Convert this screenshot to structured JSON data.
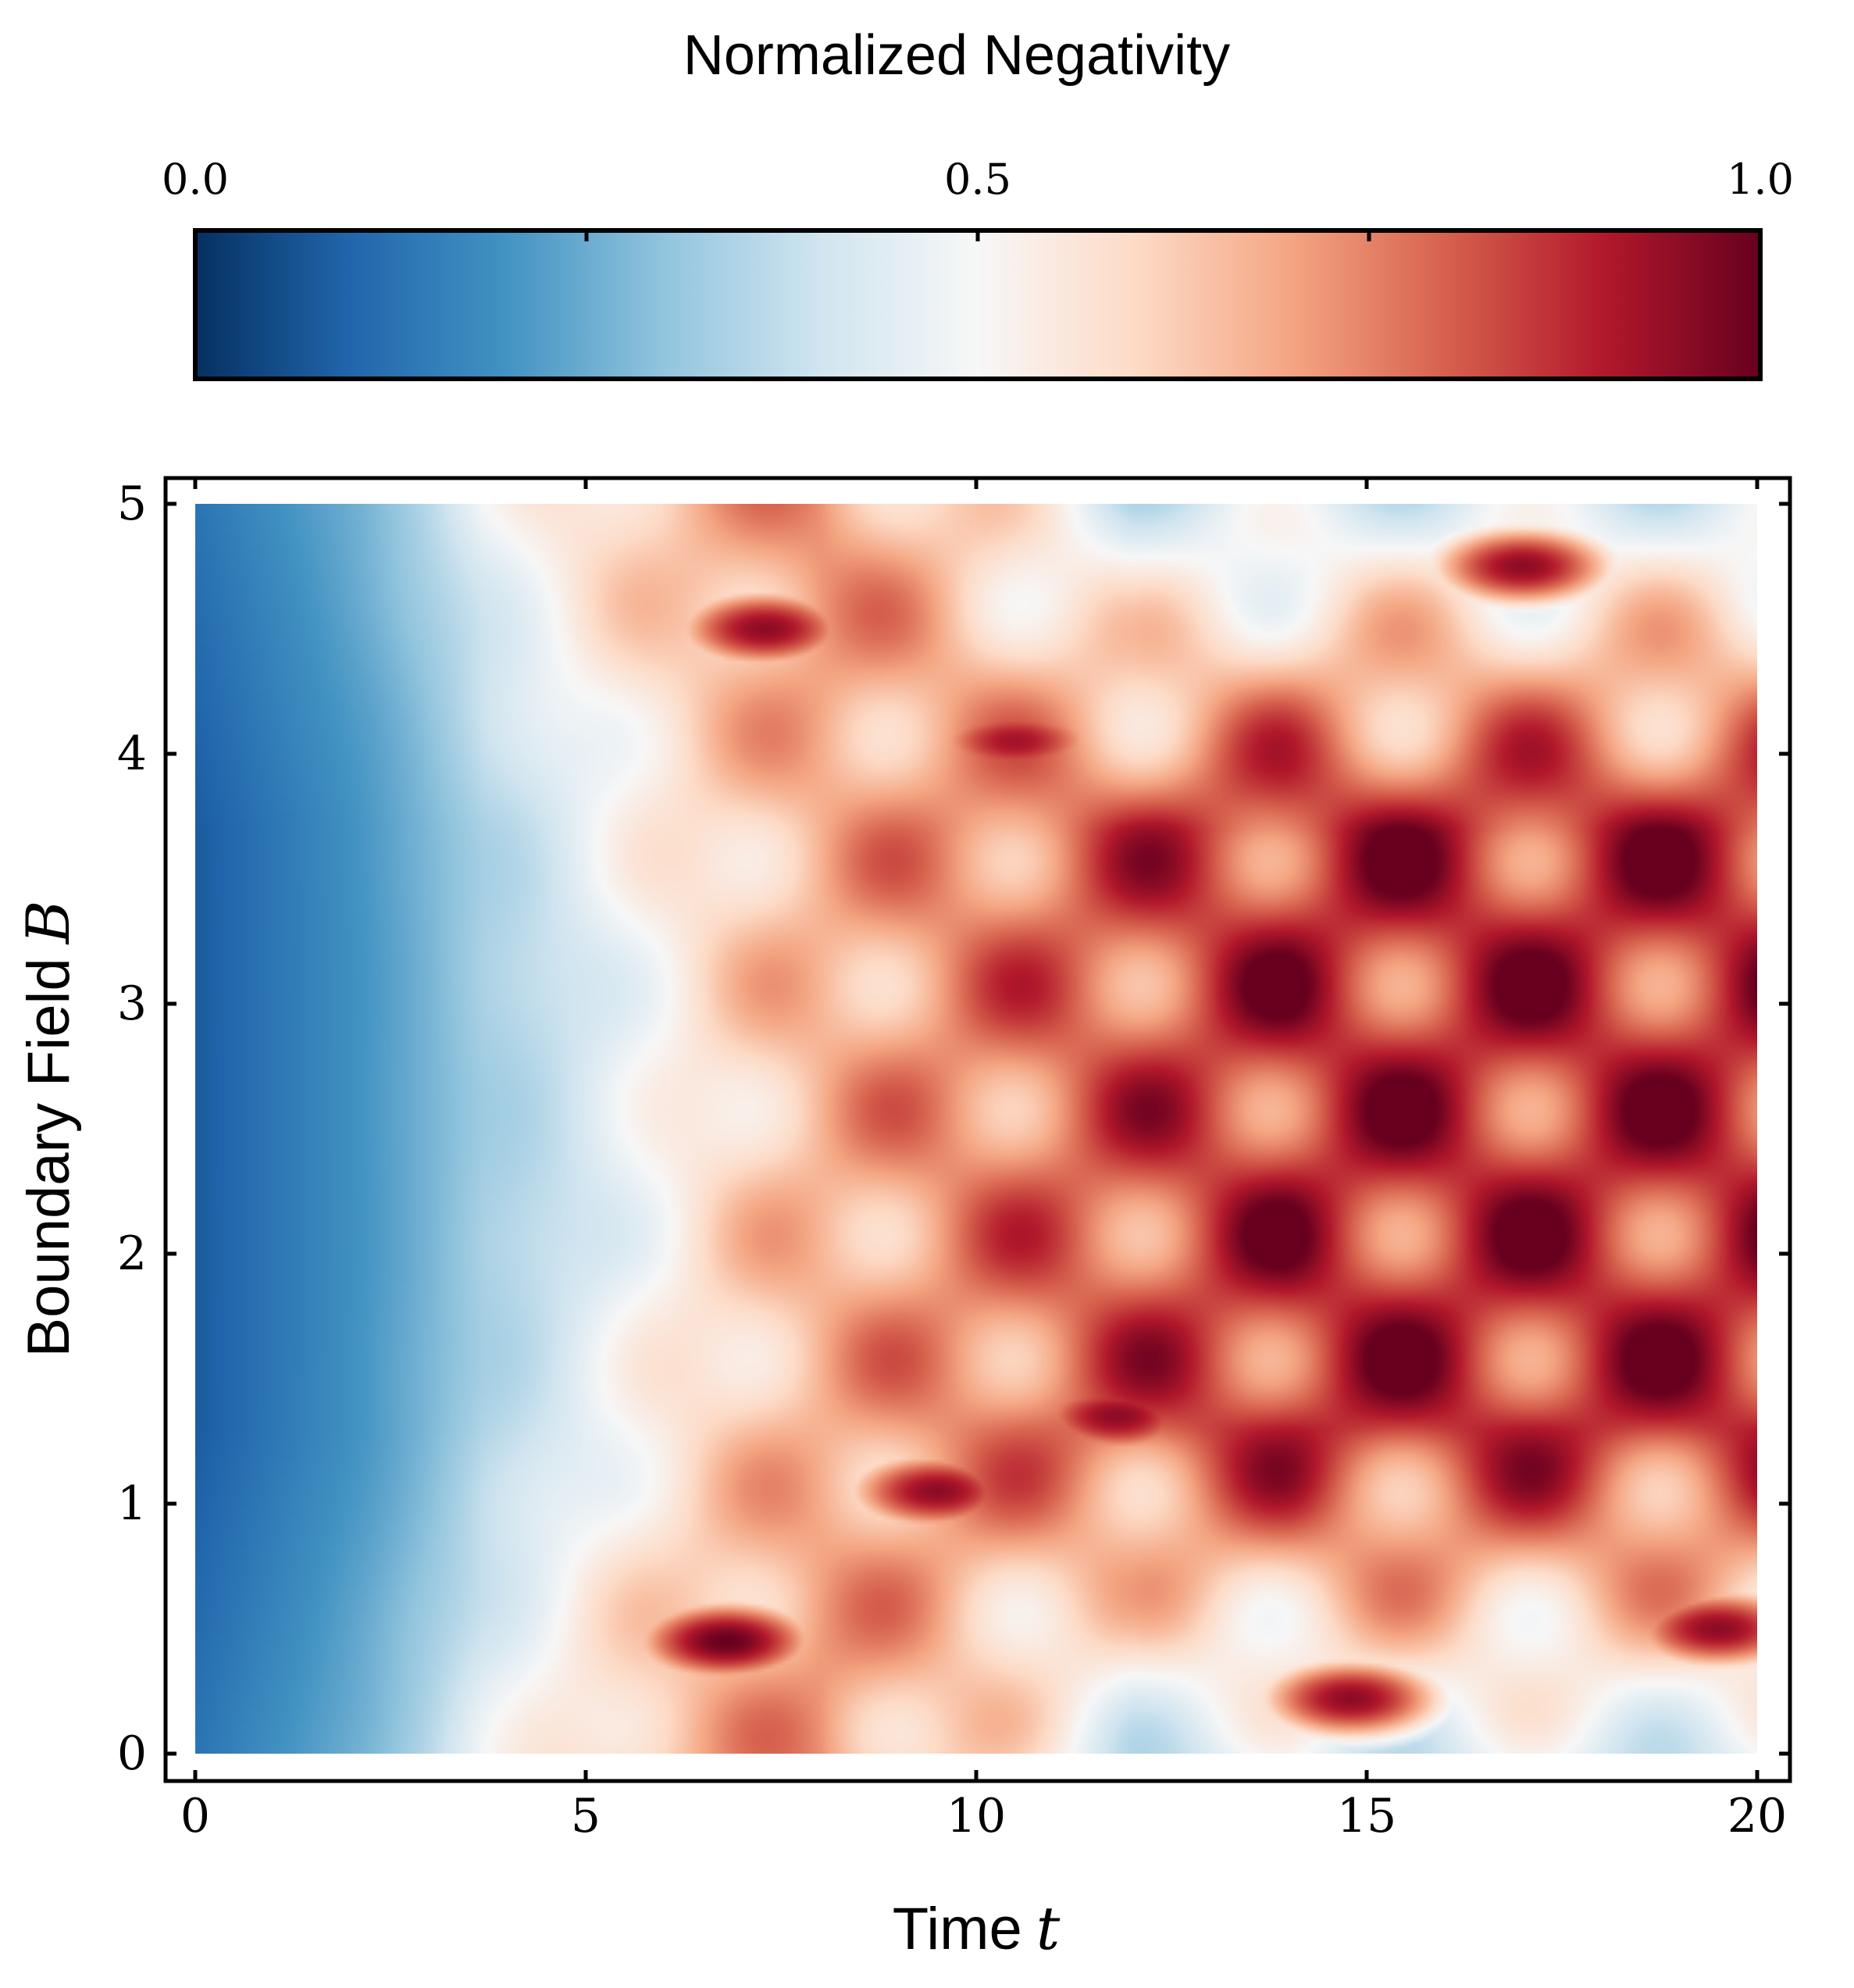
{
  "chart_data": {
    "type": "heatmap",
    "title": "",
    "colorbar": {
      "title": "Normalized Negativity",
      "range": [
        0.0,
        1.0
      ],
      "tick_labels": [
        "0.0",
        "0.5",
        "1.0"
      ],
      "ticks": [
        0.0,
        0.25,
        0.5,
        0.75,
        1.0
      ],
      "colormap": [
        "#053061",
        "#2166ac",
        "#4393c3",
        "#92c5de",
        "#d1e5f0",
        "#f7f7f7",
        "#fddbc7",
        "#f4a582",
        "#d6604d",
        "#b2182b",
        "#67001f"
      ]
    },
    "xlabel": "Time",
    "xlabel_symbol": "t",
    "ylabel": "Boundary Field",
    "ylabel_symbol": "B",
    "xlim": [
      0,
      20
    ],
    "ylim": [
      0,
      5
    ],
    "xticks": [
      0,
      5,
      10,
      15,
      20
    ],
    "yticks": [
      0,
      1,
      2,
      3,
      4,
      5
    ],
    "xtick_labels": [
      "0",
      "5",
      "10",
      "15",
      "20"
    ],
    "ytick_labels": [
      "0",
      "1",
      "2",
      "3",
      "4",
      "5"
    ],
    "grid": false,
    "features": [
      {
        "t": 6.8,
        "B": 0.45,
        "value": 1.0
      },
      {
        "t": 7.3,
        "B": 4.5,
        "value": 0.95
      },
      {
        "t": 9.5,
        "B": 1.05,
        "value": 0.95
      },
      {
        "t": 10.5,
        "B": 4.05,
        "value": 0.92
      },
      {
        "t": 11.8,
        "B": 1.35,
        "value": 0.95
      },
      {
        "t": 14.8,
        "B": 0.22,
        "value": 0.95
      },
      {
        "t": 17.0,
        "B": 4.75,
        "value": 0.95
      },
      {
        "t": 19.5,
        "B": 0.5,
        "value": 0.95
      }
    ]
  }
}
